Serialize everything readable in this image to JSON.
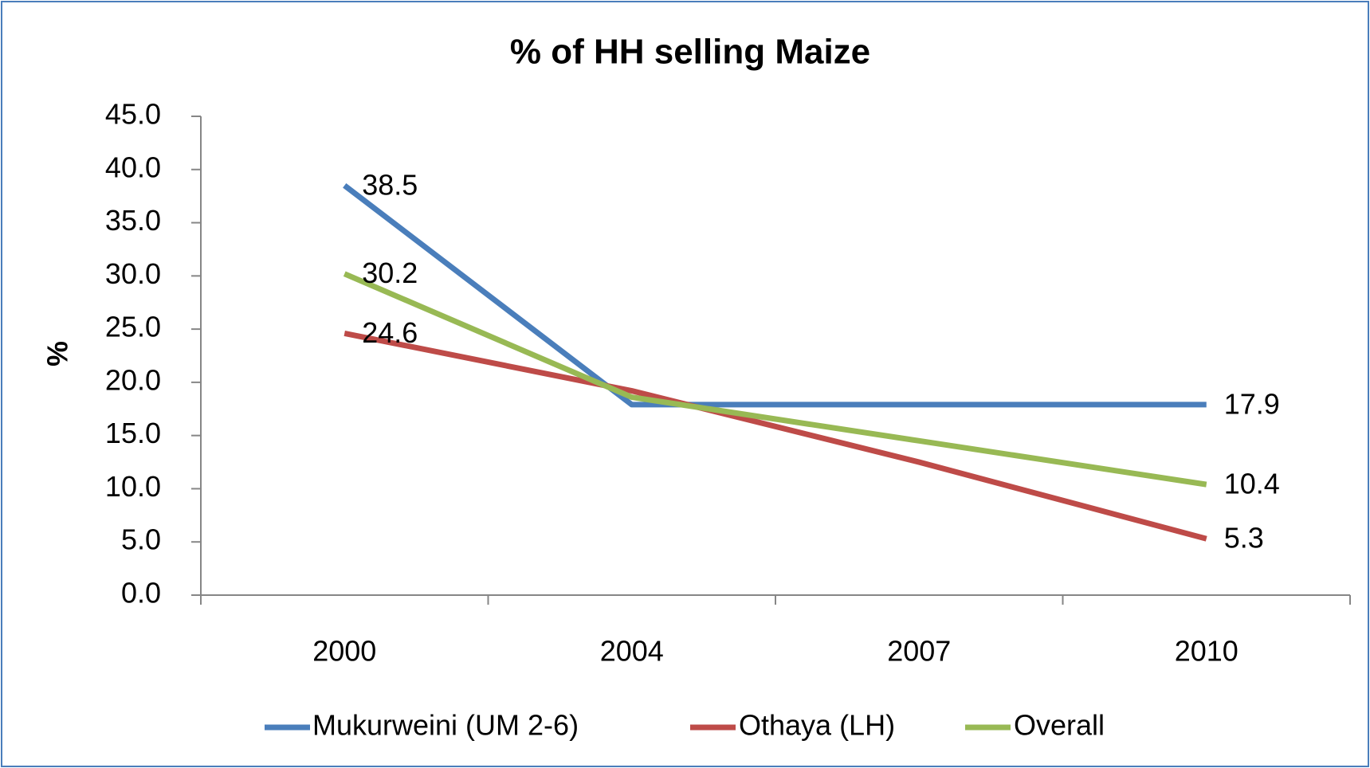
{
  "chart_data": {
    "type": "line",
    "title": "% of HH selling Maize",
    "y_label": "%",
    "categories": [
      "2000",
      "2004",
      "2007",
      "2010"
    ],
    "series": [
      {
        "name": "Mukurweini (UM 2-6)",
        "color": "#4a7ebb",
        "values": [
          38.5,
          17.9,
          17.9,
          17.9
        ]
      },
      {
        "name": "Othaya (LH)",
        "color": "#be4b48",
        "values": [
          24.6,
          19.2,
          12.5,
          5.3
        ]
      },
      {
        "name": "Overall",
        "color": "#98b954",
        "values": [
          30.2,
          18.6,
          14.5,
          10.4
        ]
      }
    ],
    "ylim": [
      0,
      45
    ],
    "yticks": [
      {
        "value": 0,
        "label": "0.0"
      },
      {
        "value": 5,
        "label": "5.0"
      },
      {
        "value": 10,
        "label": "10.0"
      },
      {
        "value": 15,
        "label": "15.0"
      },
      {
        "value": 20,
        "label": "20.0"
      },
      {
        "value": 25,
        "label": "25.0"
      },
      {
        "value": 30,
        "label": "30.0"
      },
      {
        "value": 35,
        "label": "35.0"
      },
      {
        "value": 40,
        "label": "40.0"
      },
      {
        "value": 45,
        "label": "45.0"
      }
    ],
    "grid": false,
    "legend": "bottom"
  }
}
